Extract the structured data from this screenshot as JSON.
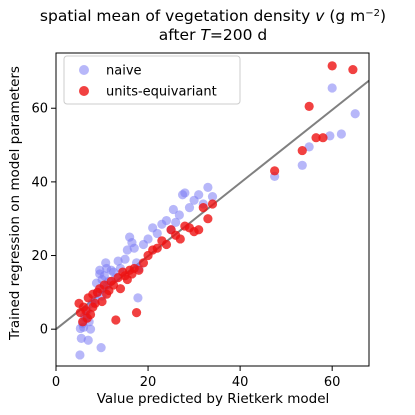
{
  "chart_data": {
    "type": "scatter",
    "title_line1": "spatial mean of vegetation density ",
    "title_var": "v",
    "title_unit": " (g m",
    "title_unit_exp": "−2",
    "title_unit_close": ")",
    "title_line2_pre": "after ",
    "title_line2_var": "T",
    "title_line2_post": "=200 d",
    "xlabel": "Value predicted by Rietkerk model",
    "ylabel": "Trained regression on model parameters",
    "xlim": [
      0,
      68
    ],
    "ylim": [
      -10,
      75
    ],
    "xticks": [
      0,
      20,
      40,
      60
    ],
    "yticks": [
      0,
      20,
      40,
      60
    ],
    "grid": false,
    "legend_position": "top-left",
    "fit_line": {
      "x": [
        0,
        68
      ],
      "y": [
        0,
        67.5
      ],
      "color": "#808080"
    },
    "series": [
      {
        "name": "naive",
        "color": "#7b7bf4",
        "opacity": 0.55,
        "points": [
          [
            5.2,
            -7.0
          ],
          [
            5.5,
            -2.5
          ],
          [
            5.3,
            0.2
          ],
          [
            6.0,
            0.5
          ],
          [
            5.8,
            1.5
          ],
          [
            6.5,
            3.0
          ],
          [
            7.0,
            -3.0
          ],
          [
            7.5,
            0.0
          ],
          [
            6.2,
            3.5
          ],
          [
            6.8,
            5.0
          ],
          [
            7.2,
            2.0
          ],
          [
            7.8,
            7.0
          ],
          [
            8.5,
            8.0
          ],
          [
            9.0,
            10.0
          ],
          [
            9.5,
            15.0
          ],
          [
            10.0,
            13.5
          ],
          [
            10.2,
            11.0
          ],
          [
            10.5,
            14.5
          ],
          [
            10.8,
            18.0
          ],
          [
            11.0,
            16.5
          ],
          [
            11.5,
            13.0
          ],
          [
            12.0,
            16.0
          ],
          [
            12.5,
            15.5
          ],
          [
            13.0,
            14.0
          ],
          [
            13.5,
            18.5
          ],
          [
            9.8,
            -5.0
          ],
          [
            8.8,
            12.5
          ],
          [
            9.5,
            16.0
          ],
          [
            10.0,
            9.0
          ],
          [
            11.2,
            12.0
          ],
          [
            14.0,
            16.5
          ],
          [
            15.0,
            19.0
          ],
          [
            15.5,
            21.5
          ],
          [
            16.0,
            25.0
          ],
          [
            16.5,
            23.5
          ],
          [
            17.0,
            22.0
          ],
          [
            17.5,
            18.0
          ],
          [
            18.0,
            16.5
          ],
          [
            17.8,
            8.5
          ],
          [
            19.0,
            23.0
          ],
          [
            20.0,
            24.5
          ],
          [
            21.0,
            27.5
          ],
          [
            22.0,
            26.0
          ],
          [
            23.0,
            28.5
          ],
          [
            24.0,
            29.5
          ],
          [
            25.0,
            27.0
          ],
          [
            25.5,
            32.5
          ],
          [
            26.0,
            29.0
          ],
          [
            26.8,
            31.0
          ],
          [
            27.5,
            36.5
          ],
          [
            28.0,
            37.0
          ],
          [
            29.0,
            33.0
          ],
          [
            30.0,
            35.0
          ],
          [
            31.0,
            36.5
          ],
          [
            32.0,
            34.0
          ],
          [
            33.0,
            38.5
          ],
          [
            34.0,
            36.0
          ],
          [
            47.5,
            41.5
          ],
          [
            53.5,
            44.5
          ],
          [
            55.0,
            49.5
          ],
          [
            59.5,
            52.5
          ],
          [
            60.0,
            65.5
          ],
          [
            62.0,
            53.0
          ],
          [
            65.0,
            58.5
          ]
        ]
      },
      {
        "name": "units-equivariant",
        "color": "#ee1111",
        "opacity": 0.8,
        "points": [
          [
            5.0,
            7.0
          ],
          [
            5.3,
            4.5
          ],
          [
            5.8,
            2.0
          ],
          [
            6.0,
            6.0
          ],
          [
            6.5,
            5.0
          ],
          [
            7.0,
            8.5
          ],
          [
            7.5,
            4.0
          ],
          [
            8.0,
            9.5
          ],
          [
            8.5,
            7.0
          ],
          [
            9.0,
            10.0
          ],
          [
            9.5,
            11.0
          ],
          [
            10.0,
            7.5
          ],
          [
            10.5,
            12.0
          ],
          [
            11.0,
            9.5
          ],
          [
            11.5,
            10.5
          ],
          [
            12.0,
            13.0
          ],
          [
            12.5,
            12.0
          ],
          [
            13.0,
            2.5
          ],
          [
            13.5,
            14.0
          ],
          [
            14.0,
            11.0
          ],
          [
            14.5,
            15.5
          ],
          [
            15.0,
            14.5
          ],
          [
            15.5,
            13.5
          ],
          [
            16.0,
            16.0
          ],
          [
            16.5,
            15.0
          ],
          [
            17.0,
            16.5
          ],
          [
            17.5,
            4.5
          ],
          [
            18.0,
            16.0
          ],
          [
            19.0,
            18.0
          ],
          [
            20.0,
            20.0
          ],
          [
            21.0,
            21.5
          ],
          [
            22.0,
            22.0
          ],
          [
            23.0,
            24.0
          ],
          [
            24.0,
            23.0
          ],
          [
            25.0,
            27.0
          ],
          [
            26.0,
            25.5
          ],
          [
            27.0,
            24.5
          ],
          [
            28.0,
            28.0
          ],
          [
            29.0,
            27.5
          ],
          [
            30.0,
            26.5
          ],
          [
            31.0,
            27.0
          ],
          [
            32.0,
            33.0
          ],
          [
            33.0,
            30.0
          ],
          [
            34.0,
            34.0
          ],
          [
            8.0,
            6.0
          ],
          [
            6.8,
            3.0
          ],
          [
            47.5,
            43.0
          ],
          [
            53.5,
            48.5
          ],
          [
            55.0,
            60.5
          ],
          [
            56.5,
            52.0
          ],
          [
            58.0,
            52.0
          ],
          [
            60.0,
            71.5
          ],
          [
            64.5,
            70.5
          ]
        ]
      }
    ]
  }
}
